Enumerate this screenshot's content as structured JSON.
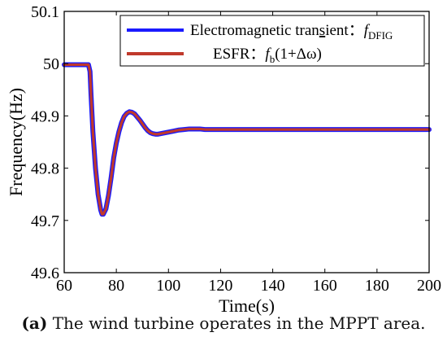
{
  "chart_data": {
    "type": "line",
    "xlabel": "Time(s)",
    "ylabel": "Frequency(Hz)",
    "xlim": [
      60,
      200
    ],
    "ylim": [
      49.6,
      50.1
    ],
    "x_ticks": [
      "60",
      "80",
      "100",
      "120",
      "140",
      "160",
      "180",
      "200"
    ],
    "y_ticks": [
      "49.6",
      "49.7",
      "49.8",
      "49.9",
      "50",
      "50.1"
    ],
    "grid": false,
    "legend_position": "top-right",
    "legend": [
      {
        "prefix": "Electromagnetic tran",
        "underlined": "s",
        "suffix": "ient：",
        "symbol": "f",
        "subscript": "DFIG"
      },
      {
        "prefix": "ESFR：",
        "symbol": "f",
        "subscript": "b",
        "suffix": "(1+Δω)"
      }
    ],
    "series": [
      {
        "name": "Electromagnetic transient：fDFIG",
        "color": "#1a1aff",
        "x": [
          60,
          64,
          69.3,
          69.9,
          70.3,
          71,
          72,
          73,
          74,
          74.5,
          75,
          76,
          77,
          78,
          79,
          80,
          81,
          82,
          83,
          84,
          85,
          86,
          87,
          88,
          89,
          90,
          91,
          92,
          93,
          94,
          95,
          96,
          97,
          98,
          99,
          100,
          102,
          104,
          106,
          108,
          110,
          112,
          114,
          116,
          120,
          130,
          140,
          160,
          180,
          200
        ],
        "y": [
          49.998,
          49.998,
          49.998,
          49.985,
          49.94,
          49.87,
          49.8,
          49.75,
          49.72,
          49.712,
          49.712,
          49.722,
          49.748,
          49.782,
          49.82,
          49.848,
          49.87,
          49.887,
          49.899,
          49.905,
          49.908,
          49.907,
          49.904,
          49.898,
          49.892,
          49.885,
          49.878,
          49.872,
          49.868,
          49.866,
          49.865,
          49.865,
          49.866,
          49.867,
          49.868,
          49.869,
          49.871,
          49.873,
          49.874,
          49.875,
          49.875,
          49.875,
          49.874,
          49.874,
          49.874,
          49.874,
          49.874,
          49.874,
          49.874,
          49.874
        ]
      },
      {
        "name": "ESFR：fb(1+Δω)",
        "color": "#c0392b",
        "x": [
          60,
          64,
          69.3,
          69.9,
          70.3,
          71,
          72,
          73,
          74,
          74.5,
          75,
          76,
          77,
          78,
          79,
          80,
          81,
          82,
          83,
          84,
          85,
          86,
          87,
          88,
          89,
          90,
          91,
          92,
          93,
          94,
          95,
          96,
          97,
          98,
          99,
          100,
          102,
          104,
          106,
          108,
          110,
          112,
          114,
          116,
          120,
          130,
          140,
          160,
          180,
          200
        ],
        "y": [
          49.998,
          49.998,
          49.998,
          49.985,
          49.94,
          49.87,
          49.8,
          49.75,
          49.72,
          49.712,
          49.712,
          49.722,
          49.748,
          49.782,
          49.82,
          49.848,
          49.87,
          49.887,
          49.899,
          49.905,
          49.908,
          49.907,
          49.904,
          49.898,
          49.892,
          49.885,
          49.878,
          49.872,
          49.868,
          49.866,
          49.865,
          49.865,
          49.866,
          49.867,
          49.868,
          49.869,
          49.871,
          49.873,
          49.874,
          49.875,
          49.875,
          49.875,
          49.874,
          49.874,
          49.874,
          49.874,
          49.874,
          49.874,
          49.874,
          49.874
        ]
      }
    ]
  },
  "caption": {
    "label": "(a)",
    "text": " The wind turbine operates in the MPPT area."
  }
}
